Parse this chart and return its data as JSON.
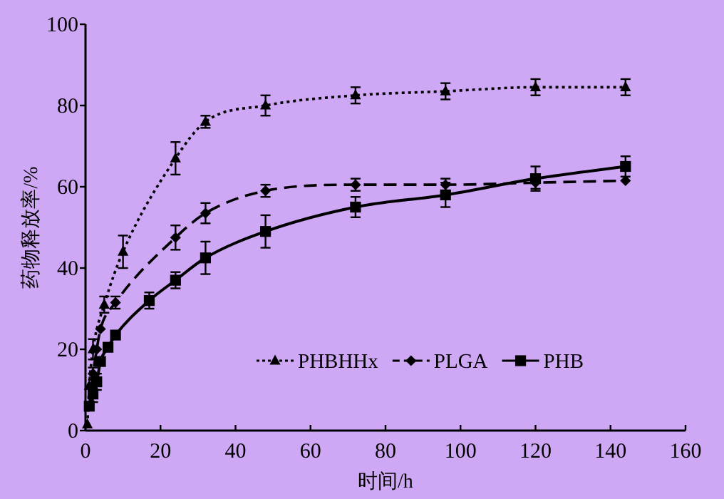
{
  "chart_data": {
    "type": "line",
    "xlabel": "时间/h",
    "ylabel": "药物释放率/%",
    "xlim": [
      0,
      160
    ],
    "ylim": [
      0,
      100
    ],
    "xticks": [
      0,
      20,
      40,
      60,
      80,
      100,
      120,
      140,
      160
    ],
    "yticks": [
      0,
      20,
      40,
      60,
      80,
      100
    ],
    "legend": "bottom right",
    "series": [
      {
        "name": "PHBHHx",
        "color": "#000000",
        "marker": "triangle",
        "line_style": "dotted",
        "x": [
          0.5,
          1,
          2,
          5,
          10,
          24,
          32,
          48,
          72,
          96,
          120,
          144
        ],
        "values": [
          1.5,
          11,
          20,
          31,
          44,
          67,
          76,
          80,
          82.5,
          83.5,
          84.5,
          84.5
        ],
        "errors": [
          null,
          null,
          2.5,
          2,
          4,
          4,
          1.5,
          2.5,
          2,
          2,
          2,
          2
        ]
      },
      {
        "name": "PLGA",
        "color": "#000000",
        "marker": "diamond",
        "line_style": "dashed",
        "x": [
          1,
          2,
          3,
          4,
          8,
          24,
          32,
          48,
          72,
          96,
          120,
          144
        ],
        "values": [
          6,
          14,
          20,
          25,
          31.5,
          47.5,
          53.5,
          59,
          60.5,
          60.5,
          61,
          61.5
        ],
        "errors": [
          null,
          1.5,
          null,
          null,
          1.5,
          3,
          2.5,
          1.5,
          1.5,
          1.5,
          1.5,
          null
        ]
      },
      {
        "name": "PHB",
        "color": "#000000",
        "marker": "square",
        "line_style": "solid",
        "x": [
          1,
          2,
          3,
          4,
          6,
          8,
          17,
          24,
          32,
          48,
          72,
          96,
          120,
          144
        ],
        "values": [
          6,
          9,
          12,
          17,
          20.5,
          23.5,
          32,
          37,
          42.5,
          49,
          55,
          58,
          62,
          65
        ],
        "errors": [
          null,
          2,
          2,
          null,
          null,
          null,
          2,
          2,
          4,
          4,
          2.5,
          3,
          3,
          2.5
        ]
      }
    ]
  }
}
